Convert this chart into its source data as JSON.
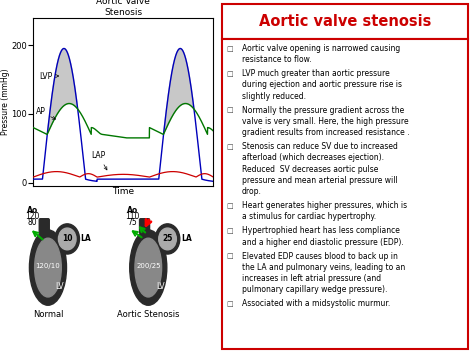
{
  "title": "Aortic valve stenosis",
  "title_color": "#cc0000",
  "graph_title": "Aortic Valve\nStenosis",
  "ylabel": "Pressure (mmHg)",
  "xlabel": "Time",
  "yticks": [
    0,
    100,
    200
  ],
  "ylim": [
    -5,
    240
  ],
  "bullet_points": [
    "Aortic valve opening is narrowed causing\nresistance to flow.",
    "LVP much greater than aortic pressure\nduring ejection and aortic pressure rise is\nslightly reduced.",
    "Normally the pressure gradient across the\nvalve is very small. Here, the high pressure\ngradient results from increased resistance .",
    "Stenosis can reduce SV due to increased\nafterload (which decreases ejection).\nReduced  SV decreases aortic pulse\npressure and mean arterial pressure will\ndrop.",
    "Heart generates higher pressures, which is\na stimulus for cardiac hypertrophy.",
    "Hypertrophied heart has less compliance\nand a higher end diastolic pressure (EDP).",
    "Elevated EDP causes blood to back up in\nthe LA and pulmonary veins, leading to an\nincreases in left atrial pressure (and\npulmonary capillary wedge pressure).",
    "Associated with a midsystolic murmur."
  ],
  "lvp_color": "#0000bb",
  "ap_color": "#007700",
  "lap_color": "#cc0000",
  "shade_color": "#bbbbbb",
  "normal_label": "Normal",
  "stenosis_label": "Aortic Stenosis",
  "ao_normal": [
    "120",
    "80"
  ],
  "la_normal": "10",
  "lv_normal": "120/10",
  "ao_stenosis": [
    "110",
    "75"
  ],
  "la_stenosis": "25",
  "lv_stenosis": "200/25"
}
